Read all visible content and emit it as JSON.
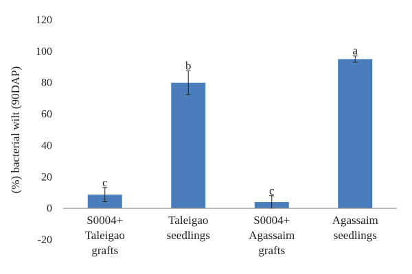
{
  "chart_data": {
    "type": "bar",
    "ylabel": "(%) bacterial wilt (90DAP)",
    "ylim": [
      -20,
      120
    ],
    "yticks": [
      -20,
      0,
      20,
      40,
      60,
      80,
      100,
      120
    ],
    "categories": [
      [
        "S0004+",
        "Taleigao",
        "grafts"
      ],
      [
        "Taleigao",
        "seedlings"
      ],
      [
        "S0004+",
        "Agassaim",
        "grafts"
      ],
      [
        "Agassaim",
        "seedlings"
      ]
    ],
    "values": [
      8.7,
      80,
      4,
      95
    ],
    "error": [
      4.5,
      7.5,
      4,
      2
    ],
    "significance": [
      "c",
      "b",
      "c",
      "a"
    ],
    "bar_color": "#4a7ebb",
    "grid": false,
    "legend": "none"
  }
}
